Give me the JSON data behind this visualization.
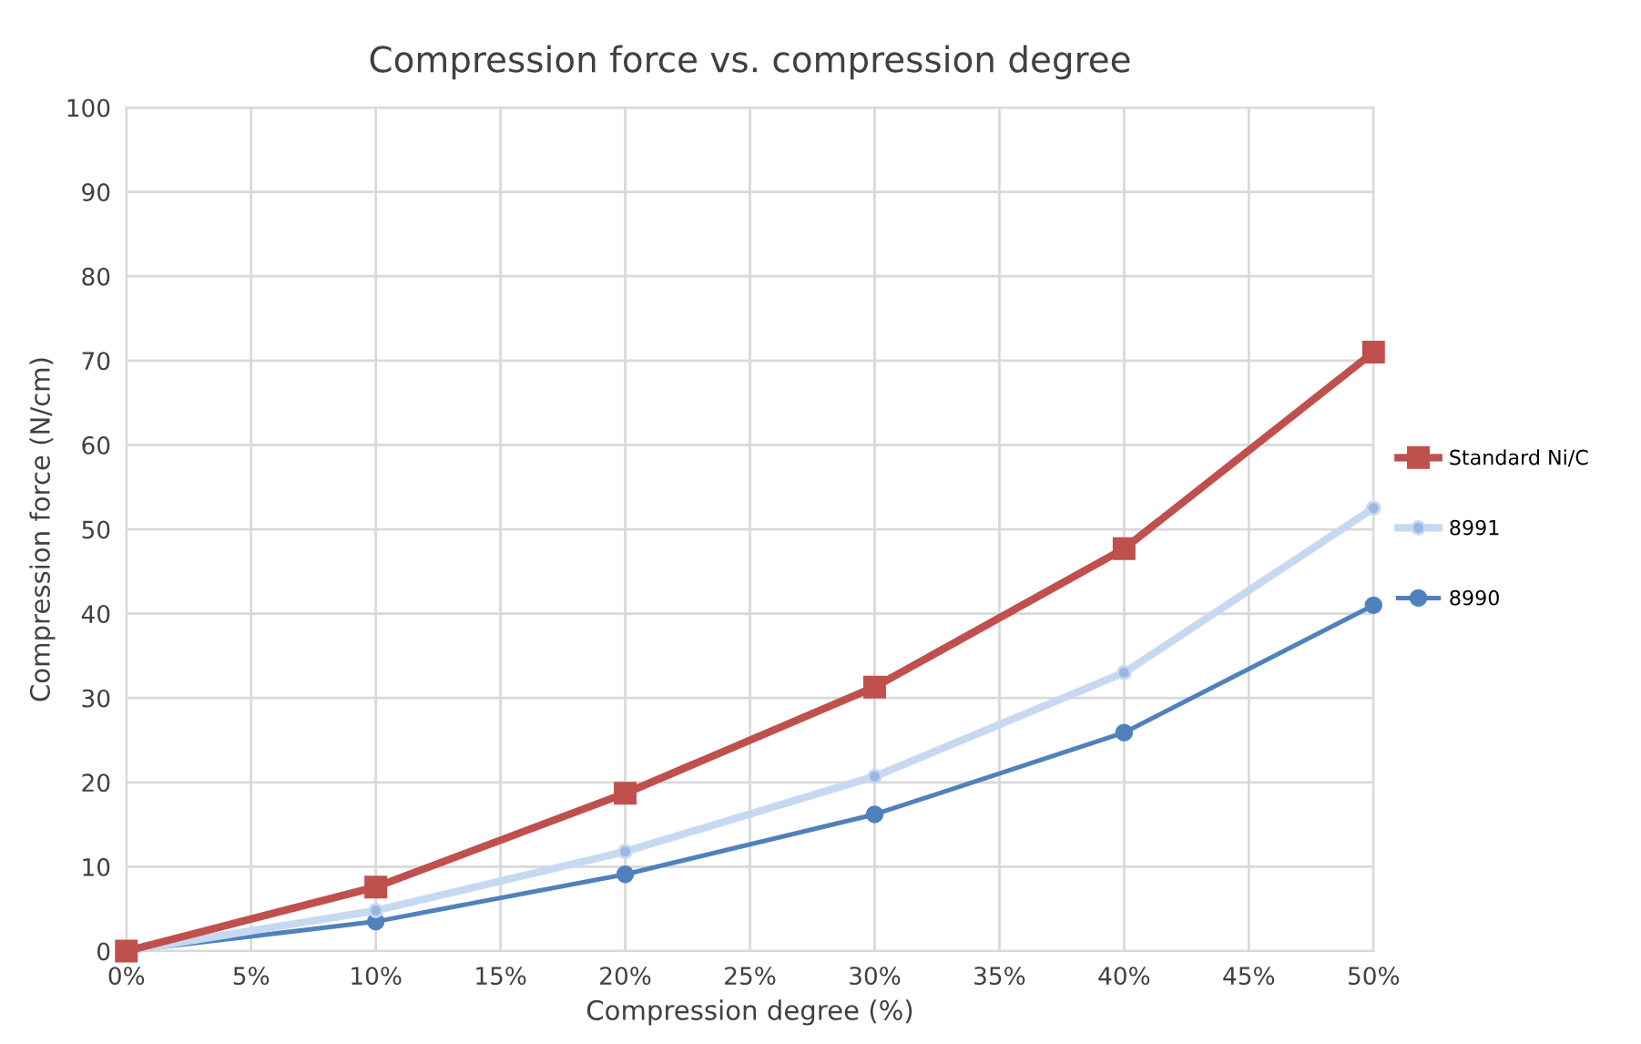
{
  "chart_data": {
    "type": "line",
    "title": "Compression force vs. compression degree",
    "xlabel": "Compression degree (%)",
    "ylabel": "Compression force (N/cm)",
    "x": [
      0,
      10,
      20,
      30,
      40,
      50
    ],
    "series": [
      {
        "name": "Standard Ni/C",
        "color": "#c0504d",
        "marker": "square",
        "values": [
          0,
          7.6,
          18.7,
          31.3,
          47.7,
          71.0
        ]
      },
      {
        "name": "8991",
        "color": "#c6d9f1",
        "marker": "circle",
        "values": [
          0,
          4.8,
          11.8,
          20.7,
          33.0,
          52.5
        ]
      },
      {
        "name": "8990",
        "color": "#4f81bd",
        "marker": "circle",
        "values": [
          0,
          3.5,
          9.1,
          16.2,
          25.9,
          41.0
        ]
      }
    ],
    "xlim": [
      0,
      50
    ],
    "xticks": [
      {
        "value": 0,
        "label": "0%"
      },
      {
        "value": 5,
        "label": "5%"
      },
      {
        "value": 10,
        "label": "10%"
      },
      {
        "value": 15,
        "label": "15%"
      },
      {
        "value": 20,
        "label": "20%"
      },
      {
        "value": 25,
        "label": "25%"
      },
      {
        "value": 30,
        "label": "30%"
      },
      {
        "value": 35,
        "label": "35%"
      },
      {
        "value": 40,
        "label": "40%"
      },
      {
        "value": 45,
        "label": "45%"
      },
      {
        "value": 50,
        "label": "50%"
      }
    ],
    "ylim": [
      0,
      100
    ],
    "yticks": [
      0,
      10,
      20,
      30,
      40,
      50,
      60,
      70,
      80,
      90,
      100
    ],
    "grid": true,
    "legend": "right",
    "line_style": "solid"
  }
}
